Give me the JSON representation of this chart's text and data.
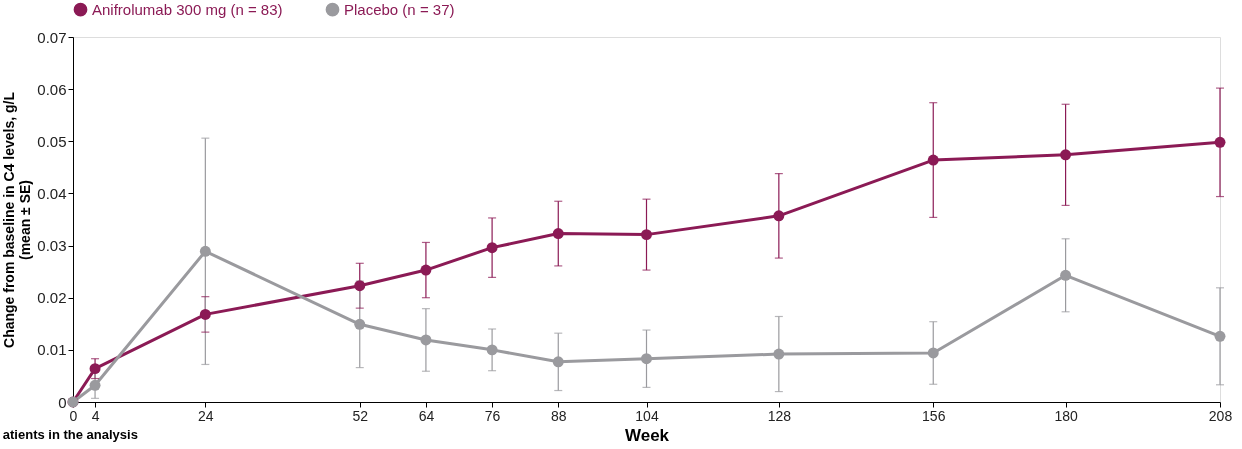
{
  "chart_data": {
    "type": "line",
    "xlabel": "Week",
    "ylabel": "Change from baseline in C4 levels, g/L\n(mean ± SE)",
    "x": [
      0,
      4,
      24,
      52,
      64,
      76,
      88,
      104,
      128,
      156,
      180,
      208
    ],
    "xlim": [
      0,
      208
    ],
    "xticks": [
      0,
      4,
      24,
      52,
      64,
      76,
      88,
      104,
      128,
      156,
      180,
      208
    ],
    "ylim": [
      0,
      0.07
    ],
    "yticks": [
      0,
      0.01,
      0.02,
      0.03,
      0.04,
      0.05,
      0.06,
      0.07
    ],
    "series": [
      {
        "name": "Anifrolumab 300 mg (n = 83)",
        "color": "#8b1a55",
        "values": [
          0,
          0.0064,
          0.0168,
          0.0223,
          0.0253,
          0.0296,
          0.0323,
          0.0321,
          0.0357,
          0.0464,
          0.0474,
          0.0498
        ],
        "errors": [
          null,
          0.0019,
          0.0034,
          0.0043,
          0.0053,
          0.0057,
          0.0062,
          0.0068,
          0.0081,
          0.011,
          0.0097,
          0.0104
        ]
      },
      {
        "name": "Placebo (n = 37)",
        "color": "#9a9a9e",
        "values": [
          0,
          0.0032,
          0.0289,
          0.0149,
          0.0119,
          0.01,
          0.0077,
          0.0083,
          0.0092,
          0.0094,
          0.0243,
          0.0126
        ],
        "errors": [
          null,
          0.0025,
          0.0217,
          0.0083,
          0.006,
          0.004,
          0.0055,
          0.0055,
          0.0072,
          0.006,
          0.007,
          0.0093
        ]
      }
    ],
    "marker": "circle",
    "line_style": "solid",
    "legend": "top",
    "grid": false,
    "annotations": [
      "atients in the analysis"
    ]
  }
}
